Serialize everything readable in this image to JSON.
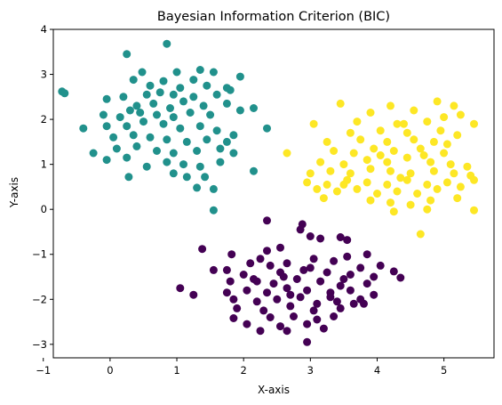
{
  "chart_data": {
    "type": "scatter",
    "title": "Bayesian Information Criterion (BIC)",
    "xlabel": "X-axis",
    "ylabel": "Y-axis",
    "xlim": [
      -0.85,
      5.75
    ],
    "ylim": [
      -3.3,
      4.0
    ],
    "xticks": [
      -1,
      0,
      1,
      2,
      3,
      4,
      5
    ],
    "yticks": [
      -3,
      -2,
      -1,
      0,
      1,
      2,
      3,
      4
    ],
    "grid": false,
    "legend": "none",
    "series": [
      {
        "color": "#440154",
        "points": [
          [
            2.35,
            -0.25
          ],
          [
            2.88,
            -0.33
          ],
          [
            3.45,
            -0.62
          ],
          [
            3.15,
            -0.65
          ],
          [
            3.55,
            -0.68
          ],
          [
            1.38,
            -0.88
          ],
          [
            2.35,
            -0.92
          ],
          [
            2.85,
            -0.45
          ],
          [
            3.0,
            -0.6
          ],
          [
            2.55,
            -0.85
          ],
          [
            1.82,
            -1.0
          ],
          [
            3.55,
            -1.05
          ],
          [
            3.85,
            -1.0
          ],
          [
            2.25,
            -1.1
          ],
          [
            2.65,
            -1.2
          ],
          [
            3.05,
            -1.1
          ],
          [
            3.35,
            -1.15
          ],
          [
            1.75,
            -1.35
          ],
          [
            2.4,
            -1.25
          ],
          [
            1.55,
            -1.35
          ],
          [
            2.1,
            -1.2
          ],
          [
            3.75,
            -1.3
          ],
          [
            4.05,
            -1.25
          ],
          [
            4.25,
            -1.38
          ],
          [
            4.35,
            -1.52
          ],
          [
            2.0,
            -1.45
          ],
          [
            2.55,
            -1.4
          ],
          [
            2.9,
            -1.35
          ],
          [
            3.25,
            -1.4
          ],
          [
            3.6,
            -1.45
          ],
          [
            3.95,
            -1.5
          ],
          [
            1.8,
            -1.6
          ],
          [
            2.15,
            -1.55
          ],
          [
            2.45,
            -1.65
          ],
          [
            2.8,
            -1.55
          ],
          [
            3.15,
            -1.6
          ],
          [
            3.45,
            -1.7
          ],
          [
            3.85,
            -1.65
          ],
          [
            1.05,
            -1.75
          ],
          [
            1.25,
            -1.9
          ],
          [
            1.75,
            -1.85
          ],
          [
            2.05,
            -1.8
          ],
          [
            2.35,
            -1.85
          ],
          [
            2.65,
            -1.75
          ],
          [
            2.95,
            -1.8
          ],
          [
            3.3,
            -1.85
          ],
          [
            3.6,
            -1.8
          ],
          [
            3.95,
            -1.9
          ],
          [
            1.85,
            -2.0
          ],
          [
            2.2,
            -2.05
          ],
          [
            2.5,
            -2.0
          ],
          [
            2.85,
            -1.95
          ],
          [
            3.1,
            -2.1
          ],
          [
            3.4,
            -2.05
          ],
          [
            3.75,
            -2.0
          ],
          [
            1.9,
            -2.2
          ],
          [
            2.3,
            -2.25
          ],
          [
            2.7,
            -2.15
          ],
          [
            3.05,
            -2.25
          ],
          [
            3.45,
            -2.2
          ],
          [
            3.8,
            -2.1
          ],
          [
            1.85,
            -2.42
          ],
          [
            2.4,
            -2.4
          ],
          [
            2.75,
            -2.38
          ],
          [
            3.1,
            -2.45
          ],
          [
            3.35,
            -2.38
          ],
          [
            2.05,
            -2.55
          ],
          [
            2.55,
            -2.6
          ],
          [
            2.95,
            -2.55
          ],
          [
            3.2,
            -2.65
          ],
          [
            2.25,
            -2.7
          ],
          [
            2.65,
            -2.7
          ],
          [
            2.95,
            -2.95
          ],
          [
            3.65,
            -2.1
          ],
          [
            2.6,
            -1.5
          ],
          [
            3.0,
            -1.3
          ],
          [
            3.5,
            -1.55
          ],
          [
            2.2,
            -1.6
          ],
          [
            3.3,
            -1.95
          ],
          [
            2.7,
            -1.9
          ]
        ]
      },
      {
        "color": "#21918c",
        "points": [
          [
            0.85,
            3.68
          ],
          [
            0.25,
            3.45
          ],
          [
            0.48,
            3.05
          ],
          [
            1.0,
            3.05
          ],
          [
            1.35,
            3.1
          ],
          [
            1.55,
            3.05
          ],
          [
            1.95,
            2.95
          ],
          [
            1.25,
            2.88
          ],
          [
            0.35,
            2.88
          ],
          [
            0.8,
            2.85
          ],
          [
            -0.72,
            2.62
          ],
          [
            -0.68,
            2.58
          ],
          [
            0.6,
            2.75
          ],
          [
            1.05,
            2.7
          ],
          [
            1.45,
            2.75
          ],
          [
            1.8,
            2.65
          ],
          [
            -0.05,
            2.45
          ],
          [
            0.2,
            2.5
          ],
          [
            0.55,
            2.55
          ],
          [
            0.75,
            2.6
          ],
          [
            0.95,
            2.55
          ],
          [
            1.25,
            2.5
          ],
          [
            1.6,
            2.55
          ],
          [
            1.75,
            2.7
          ],
          [
            0.4,
            2.3
          ],
          [
            0.65,
            2.35
          ],
          [
            0.9,
            2.25
          ],
          [
            1.1,
            2.4
          ],
          [
            1.4,
            2.3
          ],
          [
            1.95,
            2.2
          ],
          [
            2.15,
            2.25
          ],
          [
            -0.1,
            2.1
          ],
          [
            0.15,
            2.05
          ],
          [
            0.45,
            2.15
          ],
          [
            0.7,
            2.1
          ],
          [
            0.95,
            2.05
          ],
          [
            1.2,
            2.15
          ],
          [
            1.5,
            2.1
          ],
          [
            -0.4,
            1.8
          ],
          [
            -0.05,
            1.85
          ],
          [
            0.25,
            1.85
          ],
          [
            0.5,
            1.95
          ],
          [
            0.8,
            1.9
          ],
          [
            1.05,
            1.8
          ],
          [
            1.35,
            1.85
          ],
          [
            1.6,
            1.75
          ],
          [
            1.85,
            1.65
          ],
          [
            2.35,
            1.8
          ],
          [
            0.05,
            1.6
          ],
          [
            0.35,
            1.65
          ],
          [
            0.6,
            1.6
          ],
          [
            0.85,
            1.55
          ],
          [
            1.15,
            1.5
          ],
          [
            1.45,
            1.55
          ],
          [
            1.75,
            1.5
          ],
          [
            -0.25,
            1.25
          ],
          [
            0.1,
            1.35
          ],
          [
            0.4,
            1.4
          ],
          [
            0.7,
            1.3
          ],
          [
            0.95,
            1.25
          ],
          [
            1.3,
            1.3
          ],
          [
            1.65,
            1.35
          ],
          [
            1.85,
            1.25
          ],
          [
            -0.05,
            1.1
          ],
          [
            0.25,
            1.15
          ],
          [
            0.55,
            0.95
          ],
          [
            0.85,
            1.05
          ],
          [
            1.1,
            1.0
          ],
          [
            1.35,
            0.95
          ],
          [
            1.65,
            1.05
          ],
          [
            0.95,
            0.8
          ],
          [
            1.15,
            0.72
          ],
          [
            0.28,
            0.72
          ],
          [
            1.42,
            0.72
          ],
          [
            1.3,
            0.48
          ],
          [
            2.15,
            0.85
          ],
          [
            1.55,
            0.45
          ],
          [
            1.55,
            -0.02
          ],
          [
            1.75,
            2.35
          ],
          [
            0.3,
            2.2
          ]
        ]
      },
      {
        "color": "#fde725",
        "points": [
          [
            3.45,
            2.35
          ],
          [
            4.2,
            2.3
          ],
          [
            4.9,
            2.4
          ],
          [
            5.15,
            2.3
          ],
          [
            4.55,
            2.2
          ],
          [
            3.9,
            2.15
          ],
          [
            5.0,
            2.05
          ],
          [
            5.25,
            2.1
          ],
          [
            4.75,
            1.95
          ],
          [
            4.3,
            1.9
          ],
          [
            3.7,
            1.95
          ],
          [
            3.05,
            1.9
          ],
          [
            5.45,
            1.9
          ],
          [
            3.6,
            1.7
          ],
          [
            4.05,
            1.75
          ],
          [
            4.45,
            1.7
          ],
          [
            4.95,
            1.75
          ],
          [
            5.2,
            1.65
          ],
          [
            3.25,
            1.5
          ],
          [
            3.75,
            1.55
          ],
          [
            4.15,
            1.5
          ],
          [
            4.55,
            1.55
          ],
          [
            4.85,
            1.5
          ],
          [
            2.65,
            1.25
          ],
          [
            3.35,
            1.3
          ],
          [
            3.65,
            1.25
          ],
          [
            3.95,
            1.35
          ],
          [
            4.25,
            1.3
          ],
          [
            4.65,
            1.35
          ],
          [
            5.0,
            1.25
          ],
          [
            3.15,
            1.05
          ],
          [
            3.5,
            1.0
          ],
          [
            3.85,
            1.1
          ],
          [
            4.15,
            1.05
          ],
          [
            4.45,
            1.15
          ],
          [
            4.8,
            1.05
          ],
          [
            5.1,
            1.0
          ],
          [
            5.35,
            0.95
          ],
          [
            3.0,
            0.8
          ],
          [
            3.3,
            0.85
          ],
          [
            3.6,
            0.8
          ],
          [
            3.9,
            0.9
          ],
          [
            4.2,
            0.85
          ],
          [
            4.5,
            0.8
          ],
          [
            4.85,
            0.85
          ],
          [
            5.15,
            0.8
          ],
          [
            5.4,
            0.75
          ],
          [
            2.95,
            0.6
          ],
          [
            3.25,
            0.55
          ],
          [
            3.55,
            0.65
          ],
          [
            3.85,
            0.6
          ],
          [
            4.15,
            0.55
          ],
          [
            4.45,
            0.65
          ],
          [
            4.75,
            0.55
          ],
          [
            5.05,
            0.6
          ],
          [
            5.45,
            0.65
          ],
          [
            3.1,
            0.45
          ],
          [
            3.4,
            0.4
          ],
          [
            3.7,
            0.45
          ],
          [
            4.0,
            0.35
          ],
          [
            4.3,
            0.4
          ],
          [
            4.6,
            0.35
          ],
          [
            4.9,
            0.45
          ],
          [
            5.25,
            0.5
          ],
          [
            3.9,
            0.2
          ],
          [
            4.2,
            0.15
          ],
          [
            4.5,
            0.1
          ],
          [
            4.8,
            0.2
          ],
          [
            5.2,
            0.25
          ],
          [
            4.25,
            -0.05
          ],
          [
            4.75,
            0.0
          ],
          [
            5.45,
            -0.02
          ],
          [
            4.65,
            -0.55
          ],
          [
            4.4,
            1.9
          ],
          [
            4.05,
            1.2
          ],
          [
            4.7,
            1.2
          ],
          [
            3.5,
            0.55
          ],
          [
            4.35,
            0.7
          ],
          [
            5.05,
            1.45
          ],
          [
            3.2,
            0.25
          ]
        ]
      }
    ]
  }
}
